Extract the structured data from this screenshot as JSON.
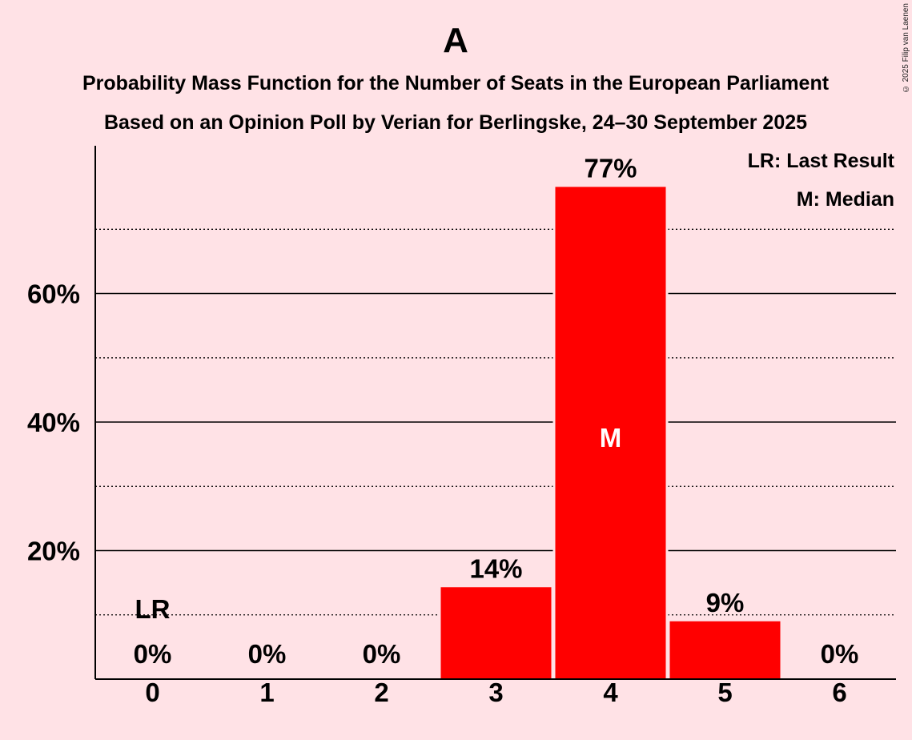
{
  "title": "A",
  "subtitle_1": "Probability Mass Function for the Number of Seats in the European Parliament",
  "subtitle_2": "Based on an Opinion Poll by Verian for Berlingske, 24–30 September 2025",
  "copyright": "© 2025 Filip van Laenen",
  "legend": {
    "last_result": "LR: Last Result",
    "median": "M: Median"
  },
  "colors": {
    "background": "#FFE2E6",
    "bar": "#FF0000",
    "axis": "#000000"
  },
  "chart_data": {
    "type": "bar",
    "categories": [
      "0",
      "1",
      "2",
      "3",
      "4",
      "5",
      "6"
    ],
    "values": [
      0,
      0,
      0,
      14.3,
      76.6,
      9.0,
      0
    ],
    "data_labels": [
      "0%",
      "0%",
      "0%",
      "14%",
      "77%",
      "9%",
      "0%"
    ],
    "ylim": [
      0,
      83
    ],
    "yticks": [
      20,
      40,
      60
    ],
    "ytick_labels": [
      "20%",
      "40%",
      "60%"
    ],
    "minor_gridlines": [
      10,
      30,
      50,
      70
    ],
    "last_result": {
      "category": "0",
      "label": "LR"
    },
    "median": {
      "category": "4",
      "label": "M"
    }
  }
}
